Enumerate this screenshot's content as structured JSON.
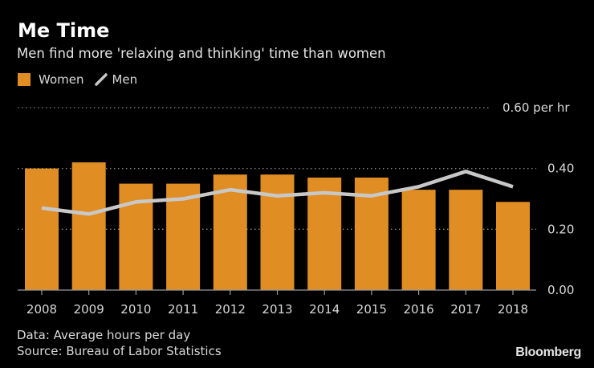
{
  "chart_data": {
    "type": "bar",
    "title": "Me Time",
    "subtitle": "Men find more 'relaxing and thinking' time than women",
    "categories": [
      "2008",
      "2009",
      "2010",
      "2011",
      "2012",
      "2013",
      "2014",
      "2015",
      "2016",
      "2017",
      "2018"
    ],
    "series": [
      {
        "name": "Women",
        "type": "bar",
        "color": "#e08d24",
        "values": [
          0.4,
          0.42,
          0.35,
          0.35,
          0.38,
          0.38,
          0.37,
          0.37,
          0.33,
          0.33,
          0.29
        ]
      },
      {
        "name": "Men",
        "type": "line",
        "color": "#c8c8c8",
        "values": [
          0.27,
          0.25,
          0.29,
          0.3,
          0.33,
          0.31,
          0.32,
          0.31,
          0.34,
          0.39,
          0.34
        ]
      }
    ],
    "ylim": [
      0,
      0.6
    ],
    "yticks": [
      0,
      0.2,
      0.4,
      0.6
    ],
    "ytick_labels": [
      "0.00",
      "0.20",
      "0.40",
      "0.60 per hr"
    ],
    "grid": true,
    "legend": "top-left",
    "xlabel": "",
    "ylabel": ""
  },
  "footer": {
    "note": "Data: Average hours per day",
    "source": "Source: Bureau of Labor Statistics",
    "brand": "Bloomberg"
  }
}
